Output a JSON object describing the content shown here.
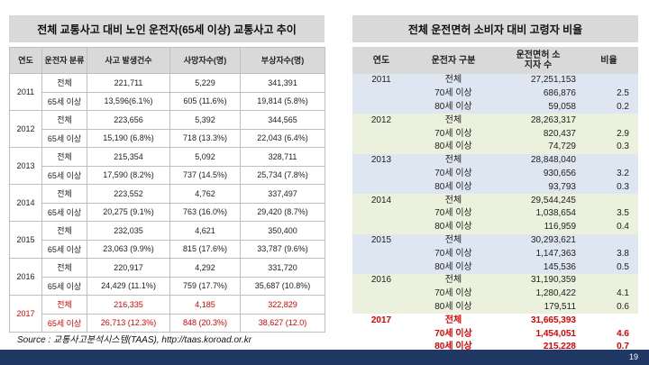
{
  "left": {
    "title": "전체 교통사고 대비 노인 운전자(65세 이상) 교통사고 추이",
    "headers": [
      "연도",
      "운전자 분류",
      "사고 발생건수",
      "사망자수(명)",
      "부상자수(명)"
    ],
    "rows": [
      {
        "year": "2011",
        "a": {
          "type": "전체",
          "acc": "221,711",
          "dead": "5,229",
          "inj": "341,391"
        },
        "b": {
          "type": "65세 이상",
          "acc": "13,596(6.1%)",
          "dead": "605 (11.6%)",
          "inj": "19,814 (5.8%)"
        }
      },
      {
        "year": "2012",
        "a": {
          "type": "전체",
          "acc": "223,656",
          "dead": "5,392",
          "inj": "344,565"
        },
        "b": {
          "type": "65세 이상",
          "acc": "15,190 (6.8%)",
          "dead": "718 (13.3%)",
          "inj": "22,043 (6.4%)"
        }
      },
      {
        "year": "2013",
        "a": {
          "type": "전체",
          "acc": "215,354",
          "dead": "5,092",
          "inj": "328,711"
        },
        "b": {
          "type": "65세 이상",
          "acc": "17,590 (8.2%)",
          "dead": "737 (14.5%)",
          "inj": "25,734 (7.8%)"
        }
      },
      {
        "year": "2014",
        "a": {
          "type": "전체",
          "acc": "223,552",
          "dead": "4,762",
          "inj": "337,497"
        },
        "b": {
          "type": "65세 이상",
          "acc": "20,275 (9.1%)",
          "dead": "763 (16.0%)",
          "inj": "29,420 (8.7%)"
        }
      },
      {
        "year": "2015",
        "a": {
          "type": "전체",
          "acc": "232,035",
          "dead": "4,621",
          "inj": "350,400"
        },
        "b": {
          "type": "65세 이상",
          "acc": "23,063 (9.9%)",
          "dead": "815 (17.6%)",
          "inj": "33,787 (9.6%)"
        }
      },
      {
        "year": "2016",
        "a": {
          "type": "전체",
          "acc": "220,917",
          "dead": "4,292",
          "inj": "331,720"
        },
        "b": {
          "type": "65세 이상",
          "acc": "24,429 (11.1%)",
          "dead": "759 (17.7%)",
          "inj": "35,687 (10.8%)"
        }
      },
      {
        "year": "2017",
        "a": {
          "type": "전체",
          "acc": "216,335",
          "dead": "4,185",
          "inj": "322,829"
        },
        "b": {
          "type": "65세 이상",
          "acc": "26,713 (12.3%)",
          "dead": "848 (20.3%)",
          "inj": "38,627 (12.0)"
        }
      }
    ]
  },
  "right": {
    "title": "전체 운전면허 소비자 대비 고령자 비율",
    "headers": [
      "연도",
      "운전자 구분",
      "운전면허 소지자 수",
      "비율"
    ],
    "groups": [
      {
        "year": "2011",
        "rows": [
          [
            "전체",
            "27,251,153",
            ""
          ],
          [
            "70세 이상",
            "686,876",
            "2.5"
          ],
          [
            "80세 이상",
            "59,058",
            "0.2"
          ]
        ]
      },
      {
        "year": "2012",
        "rows": [
          [
            "전체",
            "28,263,317",
            ""
          ],
          [
            "70세 이상",
            "820,437",
            "2.9"
          ],
          [
            "80세 이상",
            "74,729",
            "0.3"
          ]
        ]
      },
      {
        "year": "2013",
        "rows": [
          [
            "전체",
            "28,848,040",
            ""
          ],
          [
            "70세 이상",
            "930,656",
            "3.2"
          ],
          [
            "80세 이상",
            "93,793",
            "0.3"
          ]
        ]
      },
      {
        "year": "2014",
        "rows": [
          [
            "전체",
            "29,544,245",
            ""
          ],
          [
            "70세 이상",
            "1,038,654",
            "3.5"
          ],
          [
            "80세 이상",
            "116,959",
            "0.4"
          ]
        ]
      },
      {
        "year": "2015",
        "rows": [
          [
            "전체",
            "30,293,621",
            ""
          ],
          [
            "70세 이상",
            "1,147,363",
            "3.8"
          ],
          [
            "80세 이상",
            "145,536",
            "0.5"
          ]
        ]
      },
      {
        "year": "2016",
        "rows": [
          [
            "전체",
            "31,190,359",
            ""
          ],
          [
            "70세 이상",
            "1,280,422",
            "4.1"
          ],
          [
            "80세 이상",
            "179,511",
            "0.6"
          ]
        ]
      },
      {
        "year": "2017",
        "rows": [
          [
            "전체",
            "31,665,393",
            ""
          ],
          [
            "70세 이상",
            "1,454,051",
            "4.6"
          ],
          [
            "80세 이상",
            "215,228",
            "0.7"
          ]
        ]
      }
    ]
  },
  "source": "Source : 교통사고분석시스템(TAAS), http://taas.koroad.or.kr",
  "page_number": "19",
  "colors": {
    "highlight": "#e00000",
    "header_gray": "#d9d9d9",
    "blue_band": "#dde6f1",
    "green_band": "#ebf1dc",
    "footer": "#1f3864"
  }
}
